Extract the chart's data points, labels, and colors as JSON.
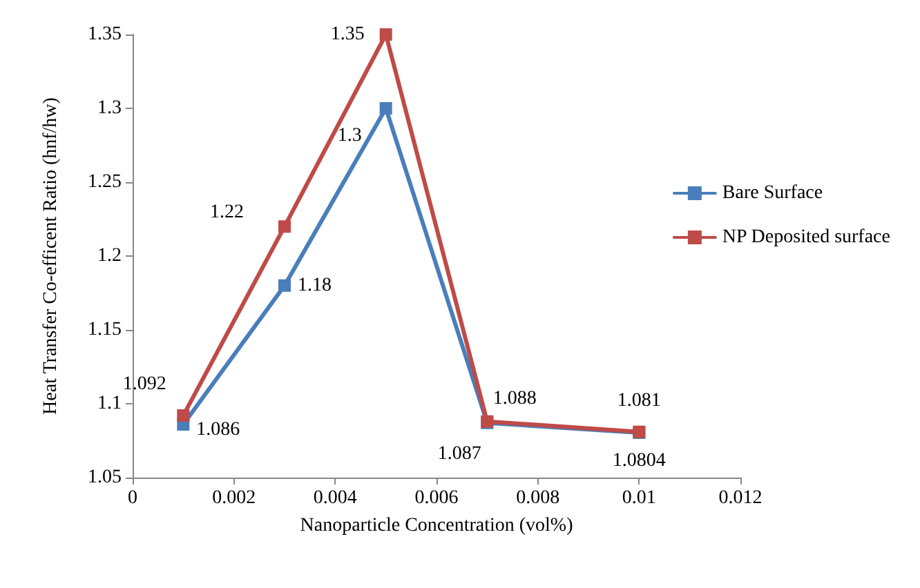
{
  "chart_data": {
    "type": "line",
    "xlabel": "Nanoparticle Concentration (vol%)",
    "ylabel": "Heat Transfer Co-efficent Ratio (hnf/hw)",
    "x": [
      0.001,
      0.003,
      0.005,
      0.007,
      0.01
    ],
    "series": [
      {
        "name": "Bare Surface",
        "color": "#4a7ebb",
        "values": [
          1.086,
          1.18,
          1.3,
          1.087,
          1.0804
        ]
      },
      {
        "name": "NP Deposited surface",
        "color": "#be4b48",
        "values": [
          1.092,
          1.22,
          1.35,
          1.088,
          1.081
        ]
      }
    ],
    "xlim": [
      0,
      0.012
    ],
    "xticks": [
      0,
      0.002,
      0.004,
      0.006,
      0.008,
      0.01,
      0.012
    ],
    "ylim": [
      1.05,
      1.35
    ],
    "yticks": [
      1.05,
      1.1,
      1.15,
      1.2,
      1.25,
      1.3,
      1.35
    ],
    "data_labels": true,
    "grid": false,
    "legend": "right",
    "marker": "square",
    "line_style": "solid"
  }
}
